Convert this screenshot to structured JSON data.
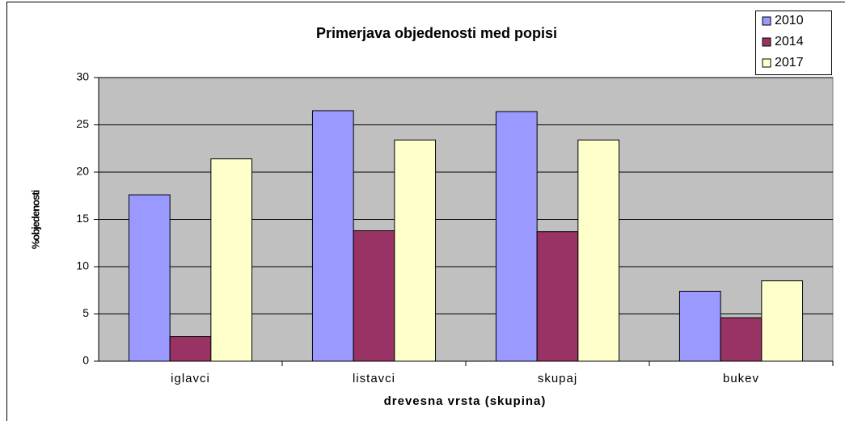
{
  "chart_data": {
    "type": "bar",
    "title": "Primerjava objedenosti med popisi",
    "x_label": "drevesna vrsta (skupina)",
    "y_label": "%objedenosti",
    "categories": [
      "iglavci",
      "listavci",
      "skupaj",
      "bukev"
    ],
    "series": [
      {
        "name": "2010",
        "color": "#9999ff",
        "values": [
          17.6,
          26.5,
          26.4,
          7.4
        ]
      },
      {
        "name": "2014",
        "color": "#993366",
        "values": [
          2.6,
          13.8,
          13.7,
          4.6
        ]
      },
      {
        "name": "2017",
        "color": "#ffffcc",
        "values": [
          21.4,
          23.4,
          23.4,
          8.5
        ]
      }
    ],
    "ylim": [
      0,
      30
    ],
    "yticks": [
      0,
      5,
      10,
      15,
      20,
      25,
      30
    ],
    "grid": true,
    "legend": "top-right"
  }
}
